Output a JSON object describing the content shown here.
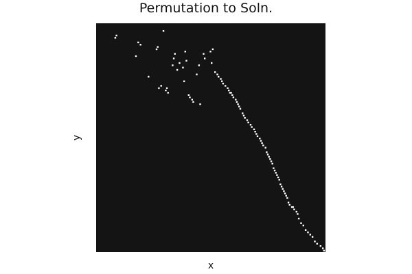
{
  "chart_data": {
    "type": "heatmap",
    "title": "Permutation to Soln.",
    "xlabel": "x",
    "ylabel": "y",
    "colors": {
      "background": "#141414",
      "cell": "#ffffff"
    },
    "grid": false,
    "legend": false,
    "axis_range": {
      "n_cells": 140
    },
    "cells": [
      [
        16,
        6
      ],
      [
        17,
        5
      ],
      [
        34,
        14
      ],
      [
        36,
        8
      ],
      [
        38,
        9
      ],
      [
        45,
        23
      ],
      [
        52,
        11
      ],
      [
        53,
        10
      ],
      [
        58,
        3
      ],
      [
        56,
        27
      ],
      [
        54,
        28
      ],
      [
        60,
        29
      ],
      [
        61,
        28
      ],
      [
        62,
        30
      ],
      [
        66,
        18
      ],
      [
        67,
        15
      ],
      [
        68,
        13
      ],
      [
        70,
        20
      ],
      [
        72,
        17
      ],
      [
        75,
        19
      ],
      [
        77,
        12
      ],
      [
        78,
        16
      ],
      [
        76,
        25
      ],
      [
        80,
        31
      ],
      [
        81,
        32
      ],
      [
        83,
        33
      ],
      [
        84,
        34
      ],
      [
        87,
        22
      ],
      [
        89,
        18
      ],
      [
        90,
        35
      ],
      [
        93,
        13
      ],
      [
        94,
        15
      ],
      [
        99,
        12
      ],
      [
        101,
        11
      ],
      [
        100,
        17
      ],
      [
        103,
        21
      ],
      [
        105,
        22
      ],
      [
        106,
        23
      ],
      [
        108,
        24
      ],
      [
        109,
        25
      ],
      [
        110,
        26
      ],
      [
        112,
        27
      ],
      [
        114,
        28
      ],
      [
        115,
        29
      ],
      [
        116,
        30
      ],
      [
        117,
        30
      ],
      [
        118,
        31
      ],
      [
        119,
        32
      ],
      [
        121,
        33
      ],
      [
        122,
        34
      ],
      [
        123,
        35
      ],
      [
        124,
        36
      ],
      [
        125,
        37
      ],
      [
        127,
        39
      ],
      [
        128,
        40
      ],
      [
        129,
        41
      ],
      [
        131,
        42
      ],
      [
        132,
        43
      ],
      [
        134,
        44
      ],
      [
        135,
        45
      ],
      [
        137,
        46
      ],
      [
        138,
        47
      ],
      [
        139,
        48
      ],
      [
        140,
        49
      ],
      [
        142,
        50
      ],
      [
        143,
        51
      ],
      [
        144,
        52
      ],
      [
        145,
        53
      ],
      [
        147,
        54
      ],
      [
        148,
        56
      ],
      [
        149,
        57
      ],
      [
        150,
        58
      ],
      [
        151,
        59
      ],
      [
        152,
        60
      ],
      [
        153,
        61
      ],
      [
        154,
        63
      ],
      [
        155,
        64
      ],
      [
        156,
        65
      ],
      [
        157,
        66
      ],
      [
        158,
        67
      ],
      [
        159,
        68
      ],
      [
        160,
        70
      ],
      [
        161,
        71
      ],
      [
        162,
        72
      ],
      [
        163,
        73
      ],
      [
        164,
        74
      ],
      [
        165,
        75
      ],
      [
        166,
        76
      ],
      [
        167,
        78
      ],
      [
        168,
        79
      ],
      [
        170,
        80
      ],
      [
        171,
        80
      ],
      [
        172,
        81
      ],
      [
        174,
        82
      ],
      [
        175,
        83
      ],
      [
        176,
        85
      ],
      [
        178,
        87
      ],
      [
        180,
        88
      ],
      [
        182,
        90
      ],
      [
        184,
        91
      ],
      [
        186,
        92
      ],
      [
        188,
        93
      ],
      [
        190,
        95
      ],
      [
        192,
        96
      ],
      [
        195,
        97
      ],
      [
        197,
        98
      ],
      [
        198,
        99
      ],
      [
        200,
        100
      ]
    ]
  }
}
